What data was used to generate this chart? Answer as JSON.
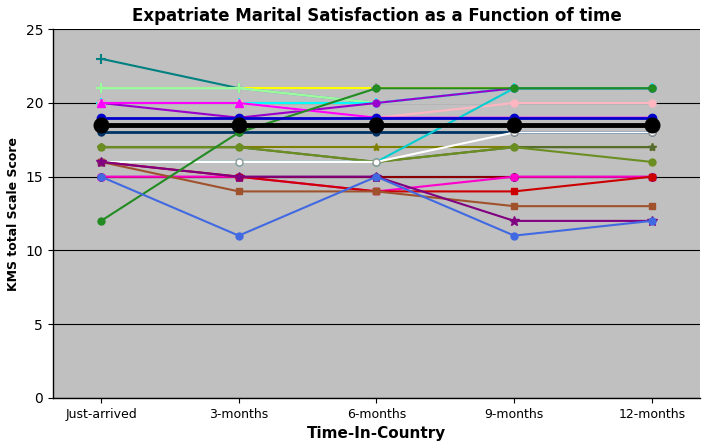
{
  "title": "Expatriate Marital Satisfaction as a Function of time",
  "xlabel": "Time-In-Country",
  "ylabel": "KMS total Scale Score",
  "xtick_labels": [
    "Just-arrived",
    "3-months",
    "6-months",
    "9-months",
    "12-months"
  ],
  "ylim": [
    0,
    25
  ],
  "yticks": [
    0,
    5,
    10,
    15,
    20,
    25
  ],
  "background_color": "#C0C0C0",
  "series": [
    {
      "values": [
        18.5,
        18.5,
        18.5,
        18.5,
        18.5
      ],
      "color": "#000000",
      "marker": "o",
      "lw": 3.5,
      "ms": 10,
      "zorder": 10,
      "mew": 1.5
    },
    {
      "values": [
        23,
        21,
        20,
        21,
        21
      ],
      "color": "#008080",
      "marker": "+",
      "lw": 1.5,
      "ms": 7,
      "zorder": 5,
      "mew": 1.5
    },
    {
      "values": [
        21,
        21,
        21,
        21,
        21
      ],
      "color": "#FFFF00",
      "marker": "+",
      "lw": 1.5,
      "ms": 7,
      "zorder": 5,
      "mew": 1.5
    },
    {
      "values": [
        21,
        21,
        20,
        21,
        21
      ],
      "color": "#99CCFF",
      "marker": "+",
      "lw": 1.5,
      "ms": 7,
      "zorder": 5,
      "mew": 1.5
    },
    {
      "values": [
        21,
        21,
        20,
        20,
        21
      ],
      "color": "#C0C0C0",
      "marker": "+",
      "lw": 1.5,
      "ms": 7,
      "zorder": 5,
      "mew": 1.5
    },
    {
      "values": [
        21,
        21,
        20,
        21,
        21
      ],
      "color": "#99FF99",
      "marker": "+",
      "lw": 1.5,
      "ms": 7,
      "zorder": 5,
      "mew": 1.5
    },
    {
      "values": [
        20,
        20,
        20,
        21,
        21
      ],
      "color": "#00FFFF",
      "marker": "+",
      "lw": 1.5,
      "ms": 7,
      "zorder": 5,
      "mew": 1.5
    },
    {
      "values": [
        20,
        19,
        20,
        21,
        21
      ],
      "color": "#9900CC",
      "marker": "o",
      "lw": 1.5,
      "ms": 5,
      "zorder": 5,
      "mew": 1
    },
    {
      "values": [
        20,
        20,
        19,
        20,
        20
      ],
      "color": "#FFB6C1",
      "marker": "o",
      "lw": 1.5,
      "ms": 5,
      "zorder": 5,
      "mew": 1
    },
    {
      "values": [
        20,
        20,
        19,
        19,
        19
      ],
      "color": "#FF00FF",
      "marker": "^",
      "lw": 1.5,
      "ms": 6,
      "zorder": 5,
      "mew": 1
    },
    {
      "values": [
        19,
        19,
        19,
        19,
        19
      ],
      "color": "#0000CC",
      "marker": "o",
      "lw": 2.0,
      "ms": 6,
      "zorder": 6,
      "mew": 1
    },
    {
      "values": [
        18,
        18,
        18,
        18,
        18
      ],
      "color": "#003366",
      "marker": "o",
      "lw": 2.0,
      "ms": 5,
      "zorder": 5,
      "mew": 1
    },
    {
      "values": [
        17,
        17,
        17,
        17,
        17
      ],
      "color": "#808000",
      "marker": "*",
      "lw": 1.5,
      "ms": 6,
      "zorder": 5,
      "mew": 1
    },
    {
      "values": [
        17,
        17,
        16,
        17,
        17
      ],
      "color": "#556B2F",
      "marker": "*",
      "lw": 1.5,
      "ms": 6,
      "zorder": 5,
      "mew": 1
    },
    {
      "values": [
        17,
        17,
        16,
        17,
        16
      ],
      "color": "#6B8E23",
      "marker": "o",
      "lw": 1.5,
      "ms": 5,
      "zorder": 5,
      "mew": 1
    },
    {
      "values": [
        16,
        16,
        16,
        21,
        21
      ],
      "color": "#00CED1",
      "marker": "o",
      "lw": 1.5,
      "ms": 5,
      "zorder": 5,
      "mew": 1
    },
    {
      "values": [
        16,
        16,
        16,
        18,
        18
      ],
      "color": "#FFFFFF",
      "marker": "o",
      "lw": 1.5,
      "ms": 5,
      "zorder": 5,
      "mew": 1
    },
    {
      "values": [
        15,
        15,
        15,
        15,
        15
      ],
      "color": "#0000FF",
      "marker": "o",
      "lw": 1.5,
      "ms": 5,
      "zorder": 5,
      "mew": 1
    },
    {
      "values": [
        15,
        15,
        15,
        15,
        15
      ],
      "color": "#8B0000",
      "marker": "o",
      "lw": 1.5,
      "ms": 5,
      "zorder": 5,
      "mew": 1
    },
    {
      "values": [
        15,
        15,
        14,
        15,
        15
      ],
      "color": "#FF00CC",
      "marker": "s",
      "lw": 1.5,
      "ms": 5,
      "zorder": 5,
      "mew": 1
    },
    {
      "values": [
        16,
        15,
        14,
        14,
        15
      ],
      "color": "#CC0000",
      "marker": "s",
      "lw": 1.5,
      "ms": 5,
      "zorder": 5,
      "mew": 1
    },
    {
      "values": [
        16,
        14,
        14,
        13,
        13
      ],
      "color": "#A0522D",
      "marker": "s",
      "lw": 1.5,
      "ms": 5,
      "zorder": 5,
      "mew": 1
    },
    {
      "values": [
        16,
        15,
        15,
        12,
        12
      ],
      "color": "#800080",
      "marker": "*",
      "lw": 1.5,
      "ms": 7,
      "zorder": 5,
      "mew": 1
    },
    {
      "values": [
        12,
        18,
        21,
        21,
        21
      ],
      "color": "#228B22",
      "marker": "o",
      "lw": 1.5,
      "ms": 5,
      "zorder": 5,
      "mew": 1
    },
    {
      "values": [
        15,
        11,
        15,
        11,
        12
      ],
      "color": "#4169E1",
      "marker": "o",
      "lw": 1.5,
      "ms": 5,
      "zorder": 5,
      "mew": 1
    }
  ]
}
